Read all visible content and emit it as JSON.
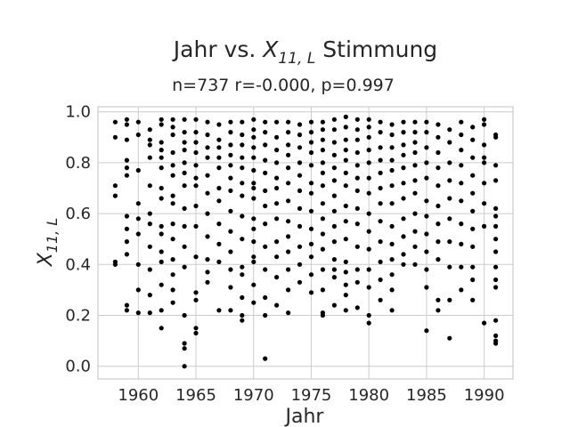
{
  "chart_data": {
    "type": "scatter",
    "title_prefix": "Jahr vs. ",
    "title_var": "X",
    "title_sub": "11, L",
    "title_suffix": " Stimmung",
    "subtitle": "n=737 r=-0.000, p=0.997",
    "xlabel": "Jahr",
    "ylabel_var": "X",
    "ylabel_sub": "11, L",
    "xlim": [
      1956.5,
      1992.5
    ],
    "ylim": [
      -0.05,
      1.02
    ],
    "xticks": [
      1960,
      1965,
      1970,
      1975,
      1980,
      1985,
      1990
    ],
    "yticks": [
      "0.0",
      "0.2",
      "0.4",
      "0.6",
      "0.8",
      "1.0"
    ],
    "grid": true,
    "marker_color": "#000000",
    "points": [
      [
        1958,
        0.96
      ],
      [
        1958,
        0.9
      ],
      [
        1958,
        0.71
      ],
      [
        1958,
        0.67
      ],
      [
        1958,
        0.41
      ],
      [
        1958,
        0.4
      ],
      [
        1959,
        0.97
      ],
      [
        1959,
        0.95
      ],
      [
        1959,
        0.89
      ],
      [
        1959,
        0.81
      ],
      [
        1959,
        0.78
      ],
      [
        1959,
        0.75
      ],
      [
        1959,
        0.59
      ],
      [
        1959,
        0.54
      ],
      [
        1959,
        0.49
      ],
      [
        1959,
        0.44
      ],
      [
        1959,
        0.24
      ],
      [
        1959,
        0.22
      ],
      [
        1960,
        0.96
      ],
      [
        1960,
        0.91
      ],
      [
        1960,
        0.77
      ],
      [
        1960,
        0.64
      ],
      [
        1960,
        0.58
      ],
      [
        1960,
        0.52
      ],
      [
        1960,
        0.4
      ],
      [
        1960,
        0.3
      ],
      [
        1960,
        0.21
      ],
      [
        1961,
        0.93
      ],
      [
        1961,
        0.89
      ],
      [
        1961,
        0.87
      ],
      [
        1961,
        0.82
      ],
      [
        1961,
        0.71
      ],
      [
        1961,
        0.6
      ],
      [
        1961,
        0.56
      ],
      [
        1961,
        0.47
      ],
      [
        1961,
        0.38
      ],
      [
        1961,
        0.28
      ],
      [
        1961,
        0.21
      ],
      [
        1962,
        0.97
      ],
      [
        1962,
        0.95
      ],
      [
        1962,
        0.88
      ],
      [
        1962,
        0.85
      ],
      [
        1962,
        0.82
      ],
      [
        1962,
        0.78
      ],
      [
        1962,
        0.7
      ],
      [
        1962,
        0.66
      ],
      [
        1962,
        0.55
      ],
      [
        1962,
        0.52
      ],
      [
        1962,
        0.45
      ],
      [
        1962,
        0.41
      ],
      [
        1962,
        0.32
      ],
      [
        1962,
        0.22
      ],
      [
        1962,
        0.15
      ],
      [
        1963,
        0.97
      ],
      [
        1963,
        0.94
      ],
      [
        1963,
        0.91
      ],
      [
        1963,
        0.84
      ],
      [
        1963,
        0.79
      ],
      [
        1963,
        0.75
      ],
      [
        1963,
        0.67
      ],
      [
        1963,
        0.64
      ],
      [
        1963,
        0.56
      ],
      [
        1963,
        0.5
      ],
      [
        1963,
        0.42
      ],
      [
        1963,
        0.36
      ],
      [
        1963,
        0.3
      ],
      [
        1963,
        0.25
      ],
      [
        1964,
        0.97
      ],
      [
        1964,
        0.92
      ],
      [
        1964,
        0.88
      ],
      [
        1964,
        0.85
      ],
      [
        1964,
        0.8
      ],
      [
        1964,
        0.76
      ],
      [
        1964,
        0.71
      ],
      [
        1964,
        0.62
      ],
      [
        1964,
        0.55
      ],
      [
        1964,
        0.47
      ],
      [
        1964,
        0.39
      ],
      [
        1964,
        0.2
      ],
      [
        1964,
        0.09
      ],
      [
        1964,
        0.07
      ],
      [
        1964,
        0.0
      ],
      [
        1965,
        0.97
      ],
      [
        1965,
        0.92
      ],
      [
        1965,
        0.88
      ],
      [
        1965,
        0.84
      ],
      [
        1965,
        0.79
      ],
      [
        1965,
        0.74
      ],
      [
        1965,
        0.71
      ],
      [
        1965,
        0.63
      ],
      [
        1965,
        0.55
      ],
      [
        1965,
        0.43
      ],
      [
        1965,
        0.29
      ],
      [
        1965,
        0.26
      ],
      [
        1965,
        0.15
      ],
      [
        1965,
        0.13
      ],
      [
        1966,
        0.96
      ],
      [
        1966,
        0.91
      ],
      [
        1966,
        0.86
      ],
      [
        1966,
        0.82
      ],
      [
        1966,
        0.75
      ],
      [
        1966,
        0.68
      ],
      [
        1966,
        0.6
      ],
      [
        1966,
        0.51
      ],
      [
        1966,
        0.42
      ],
      [
        1966,
        0.37
      ],
      [
        1966,
        0.33
      ],
      [
        1967,
        0.95
      ],
      [
        1967,
        0.89
      ],
      [
        1967,
        0.86
      ],
      [
        1967,
        0.82
      ],
      [
        1967,
        0.78
      ],
      [
        1967,
        0.7
      ],
      [
        1967,
        0.65
      ],
      [
        1967,
        0.56
      ],
      [
        1967,
        0.48
      ],
      [
        1967,
        0.41
      ],
      [
        1967,
        0.22
      ],
      [
        1968,
        0.96
      ],
      [
        1968,
        0.92
      ],
      [
        1968,
        0.87
      ],
      [
        1968,
        0.83
      ],
      [
        1968,
        0.79
      ],
      [
        1968,
        0.74
      ],
      [
        1968,
        0.69
      ],
      [
        1968,
        0.61
      ],
      [
        1968,
        0.53
      ],
      [
        1968,
        0.45
      ],
      [
        1968,
        0.38
      ],
      [
        1968,
        0.31
      ],
      [
        1968,
        0.22
      ],
      [
        1969,
        0.96
      ],
      [
        1969,
        0.91
      ],
      [
        1969,
        0.87
      ],
      [
        1969,
        0.82
      ],
      [
        1969,
        0.78
      ],
      [
        1969,
        0.72
      ],
      [
        1969,
        0.67
      ],
      [
        1969,
        0.59
      ],
      [
        1969,
        0.5
      ],
      [
        1969,
        0.39
      ],
      [
        1969,
        0.36
      ],
      [
        1969,
        0.27
      ],
      [
        1969,
        0.2
      ],
      [
        1969,
        0.18
      ],
      [
        1970,
        0.97
      ],
      [
        1970,
        0.93
      ],
      [
        1970,
        0.9
      ],
      [
        1970,
        0.86
      ],
      [
        1970,
        0.82
      ],
      [
        1970,
        0.77
      ],
      [
        1970,
        0.72
      ],
      [
        1970,
        0.7
      ],
      [
        1970,
        0.66
      ],
      [
        1970,
        0.58
      ],
      [
        1970,
        0.54
      ],
      [
        1970,
        0.49
      ],
      [
        1970,
        0.43
      ],
      [
        1970,
        0.41
      ],
      [
        1970,
        0.32
      ],
      [
        1970,
        0.25
      ],
      [
        1971,
        0.96
      ],
      [
        1971,
        0.92
      ],
      [
        1971,
        0.87
      ],
      [
        1971,
        0.81
      ],
      [
        1971,
        0.76
      ],
      [
        1971,
        0.69
      ],
      [
        1971,
        0.63
      ],
      [
        1971,
        0.56
      ],
      [
        1971,
        0.47
      ],
      [
        1971,
        0.38
      ],
      [
        1971,
        0.27
      ],
      [
        1971,
        0.2
      ],
      [
        1971,
        0.03
      ],
      [
        1972,
        0.96
      ],
      [
        1972,
        0.9
      ],
      [
        1972,
        0.85
      ],
      [
        1972,
        0.8
      ],
      [
        1972,
        0.74
      ],
      [
        1972,
        0.7
      ],
      [
        1972,
        0.64
      ],
      [
        1972,
        0.58
      ],
      [
        1972,
        0.49
      ],
      [
        1972,
        0.43
      ],
      [
        1972,
        0.35
      ],
      [
        1972,
        0.24
      ],
      [
        1973,
        0.96
      ],
      [
        1973,
        0.92
      ],
      [
        1973,
        0.87
      ],
      [
        1973,
        0.83
      ],
      [
        1973,
        0.78
      ],
      [
        1973,
        0.72
      ],
      [
        1973,
        0.65
      ],
      [
        1973,
        0.57
      ],
      [
        1973,
        0.51
      ],
      [
        1973,
        0.45
      ],
      [
        1973,
        0.38
      ],
      [
        1973,
        0.3
      ],
      [
        1973,
        0.21
      ],
      [
        1974,
        0.95
      ],
      [
        1974,
        0.91
      ],
      [
        1974,
        0.86
      ],
      [
        1974,
        0.8
      ],
      [
        1974,
        0.75
      ],
      [
        1974,
        0.69
      ],
      [
        1974,
        0.62
      ],
      [
        1974,
        0.55
      ],
      [
        1974,
        0.47
      ],
      [
        1974,
        0.4
      ],
      [
        1974,
        0.33
      ],
      [
        1975,
        0.96
      ],
      [
        1975,
        0.92
      ],
      [
        1975,
        0.88
      ],
      [
        1975,
        0.84
      ],
      [
        1975,
        0.79
      ],
      [
        1975,
        0.72
      ],
      [
        1975,
        0.68
      ],
      [
        1975,
        0.61
      ],
      [
        1975,
        0.54
      ],
      [
        1975,
        0.48
      ],
      [
        1975,
        0.43
      ],
      [
        1975,
        0.36
      ],
      [
        1975,
        0.29
      ],
      [
        1976,
        0.96
      ],
      [
        1976,
        0.93
      ],
      [
        1976,
        0.89
      ],
      [
        1976,
        0.85
      ],
      [
        1976,
        0.8
      ],
      [
        1976,
        0.76
      ],
      [
        1976,
        0.71
      ],
      [
        1976,
        0.64
      ],
      [
        1976,
        0.58
      ],
      [
        1976,
        0.52
      ],
      [
        1976,
        0.46
      ],
      [
        1976,
        0.38
      ],
      [
        1976,
        0.3
      ],
      [
        1976,
        0.21
      ],
      [
        1976,
        0.2
      ],
      [
        1977,
        0.97
      ],
      [
        1977,
        0.93
      ],
      [
        1977,
        0.88
      ],
      [
        1977,
        0.83
      ],
      [
        1977,
        0.78
      ],
      [
        1977,
        0.73
      ],
      [
        1977,
        0.67
      ],
      [
        1977,
        0.61
      ],
      [
        1977,
        0.55
      ],
      [
        1977,
        0.49
      ],
      [
        1977,
        0.42
      ],
      [
        1977,
        0.38
      ],
      [
        1977,
        0.35
      ],
      [
        1977,
        0.24
      ],
      [
        1978,
        0.98
      ],
      [
        1978,
        0.94
      ],
      [
        1978,
        0.89
      ],
      [
        1978,
        0.85
      ],
      [
        1978,
        0.81
      ],
      [
        1978,
        0.76
      ],
      [
        1978,
        0.71
      ],
      [
        1978,
        0.63
      ],
      [
        1978,
        0.57
      ],
      [
        1978,
        0.5
      ],
      [
        1978,
        0.41
      ],
      [
        1978,
        0.37
      ],
      [
        1978,
        0.32
      ],
      [
        1978,
        0.28
      ],
      [
        1978,
        0.22
      ],
      [
        1979,
        0.97
      ],
      [
        1979,
        0.93
      ],
      [
        1979,
        0.89
      ],
      [
        1979,
        0.84
      ],
      [
        1979,
        0.79
      ],
      [
        1979,
        0.74
      ],
      [
        1979,
        0.69
      ],
      [
        1979,
        0.62
      ],
      [
        1979,
        0.56
      ],
      [
        1979,
        0.47
      ],
      [
        1979,
        0.38
      ],
      [
        1979,
        0.33
      ],
      [
        1979,
        0.23
      ],
      [
        1980,
        0.97
      ],
      [
        1980,
        0.94
      ],
      [
        1980,
        0.9
      ],
      [
        1980,
        0.85
      ],
      [
        1980,
        0.8
      ],
      [
        1980,
        0.74
      ],
      [
        1980,
        0.68
      ],
      [
        1980,
        0.6
      ],
      [
        1980,
        0.53
      ],
      [
        1980,
        0.46
      ],
      [
        1980,
        0.38
      ],
      [
        1980,
        0.31
      ],
      [
        1980,
        0.2
      ],
      [
        1980,
        0.17
      ],
      [
        1981,
        0.96
      ],
      [
        1981,
        0.92
      ],
      [
        1981,
        0.86
      ],
      [
        1981,
        0.81
      ],
      [
        1981,
        0.76
      ],
      [
        1981,
        0.7
      ],
      [
        1981,
        0.64
      ],
      [
        1981,
        0.57
      ],
      [
        1981,
        0.49
      ],
      [
        1981,
        0.41
      ],
      [
        1981,
        0.34
      ],
      [
        1981,
        0.26
      ],
      [
        1982,
        0.95
      ],
      [
        1982,
        0.91
      ],
      [
        1982,
        0.86
      ],
      [
        1982,
        0.81
      ],
      [
        1982,
        0.77
      ],
      [
        1982,
        0.71
      ],
      [
        1982,
        0.64
      ],
      [
        1982,
        0.55
      ],
      [
        1982,
        0.48
      ],
      [
        1982,
        0.42
      ],
      [
        1982,
        0.36
      ],
      [
        1982,
        0.3
      ],
      [
        1982,
        0.22
      ],
      [
        1983,
        0.96
      ],
      [
        1983,
        0.92
      ],
      [
        1983,
        0.87
      ],
      [
        1983,
        0.83
      ],
      [
        1983,
        0.78
      ],
      [
        1983,
        0.72
      ],
      [
        1983,
        0.66
      ],
      [
        1983,
        0.58
      ],
      [
        1983,
        0.51
      ],
      [
        1983,
        0.44
      ],
      [
        1983,
        0.4
      ],
      [
        1984,
        0.96
      ],
      [
        1984,
        0.92
      ],
      [
        1984,
        0.88
      ],
      [
        1984,
        0.84
      ],
      [
        1984,
        0.79
      ],
      [
        1984,
        0.73
      ],
      [
        1984,
        0.68
      ],
      [
        1984,
        0.6
      ],
      [
        1984,
        0.53
      ],
      [
        1984,
        0.47
      ],
      [
        1984,
        0.4
      ],
      [
        1985,
        0.96
      ],
      [
        1985,
        0.92
      ],
      [
        1985,
        0.86
      ],
      [
        1985,
        0.8
      ],
      [
        1985,
        0.74
      ],
      [
        1985,
        0.65
      ],
      [
        1985,
        0.59
      ],
      [
        1985,
        0.52
      ],
      [
        1985,
        0.45
      ],
      [
        1985,
        0.38
      ],
      [
        1985,
        0.31
      ],
      [
        1985,
        0.14
      ],
      [
        1986,
        0.95
      ],
      [
        1986,
        0.9
      ],
      [
        1986,
        0.84
      ],
      [
        1986,
        0.78
      ],
      [
        1986,
        0.71
      ],
      [
        1986,
        0.63
      ],
      [
        1986,
        0.56
      ],
      [
        1986,
        0.49
      ],
      [
        1986,
        0.42
      ],
      [
        1986,
        0.26
      ],
      [
        1986,
        0.22
      ],
      [
        1987,
        0.93
      ],
      [
        1987,
        0.88
      ],
      [
        1987,
        0.8
      ],
      [
        1987,
        0.73
      ],
      [
        1987,
        0.66
      ],
      [
        1987,
        0.58
      ],
      [
        1987,
        0.49
      ],
      [
        1987,
        0.39
      ],
      [
        1987,
        0.26
      ],
      [
        1987,
        0.11
      ],
      [
        1988,
        0.96
      ],
      [
        1988,
        0.91
      ],
      [
        1988,
        0.85
      ],
      [
        1988,
        0.79
      ],
      [
        1988,
        0.72
      ],
      [
        1988,
        0.65
      ],
      [
        1988,
        0.56
      ],
      [
        1988,
        0.48
      ],
      [
        1988,
        0.39
      ],
      [
        1988,
        0.3
      ],
      [
        1989,
        0.94
      ],
      [
        1989,
        0.89
      ],
      [
        1989,
        0.82
      ],
      [
        1989,
        0.75
      ],
      [
        1989,
        0.68
      ],
      [
        1989,
        0.61
      ],
      [
        1989,
        0.54
      ],
      [
        1989,
        0.47
      ],
      [
        1989,
        0.39
      ],
      [
        1989,
        0.34
      ],
      [
        1989,
        0.26
      ],
      [
        1990,
        0.97
      ],
      [
        1990,
        0.95
      ],
      [
        1990,
        0.87
      ],
      [
        1990,
        0.82
      ],
      [
        1990,
        0.8
      ],
      [
        1990,
        0.72
      ],
      [
        1990,
        0.64
      ],
      [
        1990,
        0.55
      ],
      [
        1990,
        0.17
      ],
      [
        1991,
        0.91
      ],
      [
        1991,
        0.9
      ],
      [
        1991,
        0.79
      ],
      [
        1991,
        0.73
      ],
      [
        1991,
        0.62
      ],
      [
        1991,
        0.59
      ],
      [
        1991,
        0.55
      ],
      [
        1991,
        0.5
      ],
      [
        1991,
        0.45
      ],
      [
        1991,
        0.39
      ],
      [
        1991,
        0.34
      ],
      [
        1991,
        0.31
      ],
      [
        1991,
        0.18
      ],
      [
        1991,
        0.12
      ],
      [
        1991,
        0.1
      ],
      [
        1991,
        0.09
      ]
    ]
  }
}
